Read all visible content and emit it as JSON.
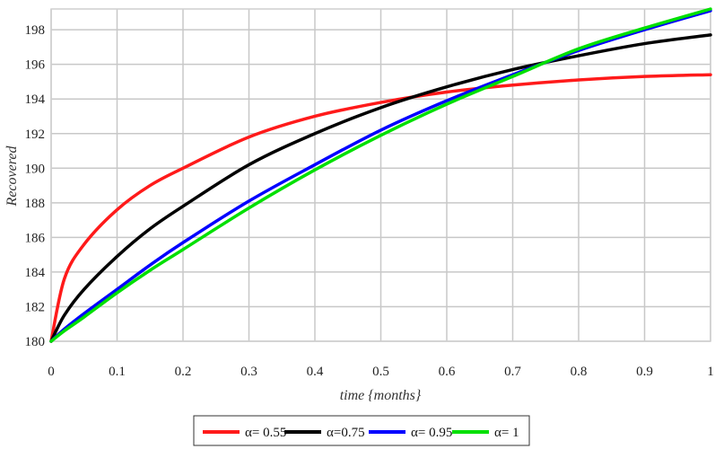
{
  "chart_data": {
    "type": "line",
    "xlabel": "time {months}",
    "ylabel": "Recovered",
    "xlim": [
      0,
      1
    ],
    "ylim": [
      180,
      199.2
    ],
    "x_ticks": [
      "0",
      "0.1",
      "0.2",
      "0.3",
      "0.4",
      "0.5",
      "0.6",
      "0.7",
      "0.8",
      "0.9",
      "1"
    ],
    "y_ticks": [
      "180",
      "182",
      "184",
      "186",
      "188",
      "190",
      "192",
      "194",
      "196",
      "198"
    ],
    "grid": true,
    "legend_position": "bottom",
    "x": [
      0,
      0.02,
      0.05,
      0.1,
      0.15,
      0.2,
      0.3,
      0.4,
      0.5,
      0.6,
      0.7,
      0.8,
      0.9,
      1.0
    ],
    "series": [
      {
        "name": "α= 0.55",
        "color": "#ff1a1a",
        "values": [
          180,
          183.6,
          185.6,
          187.6,
          189.0,
          190.0,
          191.8,
          193.0,
          193.8,
          194.4,
          194.8,
          195.1,
          195.3,
          195.4
        ]
      },
      {
        "name": "α=0.75",
        "color": "#000000",
        "values": [
          180,
          181.5,
          183.0,
          184.9,
          186.5,
          187.8,
          190.2,
          192.0,
          193.5,
          194.7,
          195.7,
          196.5,
          197.2,
          197.7
        ]
      },
      {
        "name": "α= 0.95",
        "color": "#0000ff",
        "values": [
          180,
          180.7,
          181.6,
          183.0,
          184.4,
          185.7,
          188.1,
          190.2,
          192.2,
          193.9,
          195.4,
          196.8,
          198.0,
          199.1
        ]
      },
      {
        "name": "α= 1",
        "color": "#00e000",
        "values": [
          180,
          180.6,
          181.4,
          182.8,
          184.1,
          185.3,
          187.7,
          189.9,
          191.9,
          193.7,
          195.3,
          196.9,
          198.1,
          199.2
        ]
      }
    ]
  }
}
